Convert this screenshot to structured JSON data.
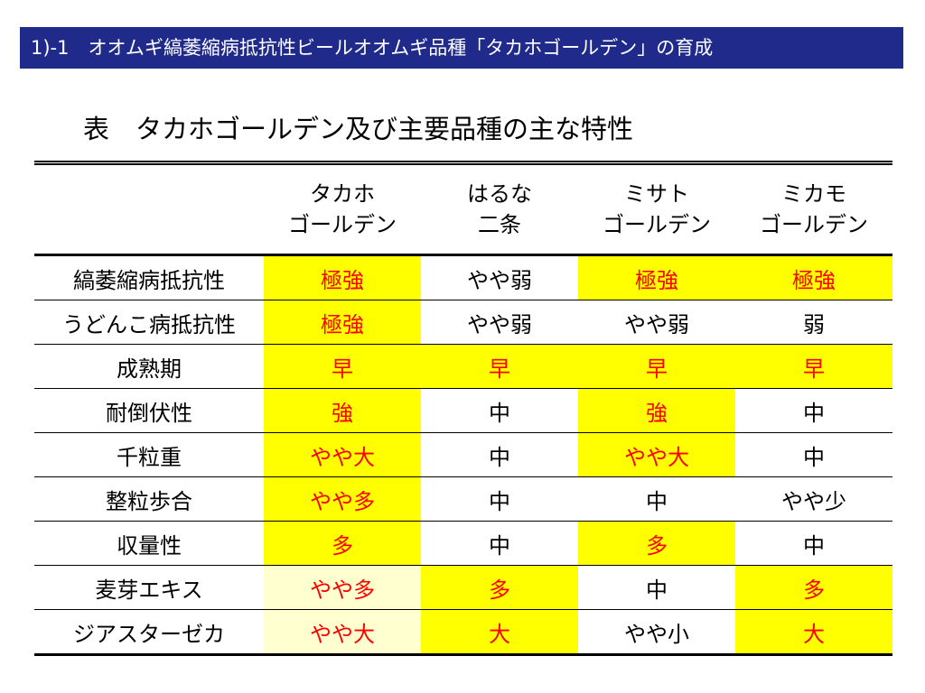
{
  "header": {
    "title": "1)-1　オオムギ縞萎縮病抵抗性ビールオオムギ品種「タカホゴールデン」の育成"
  },
  "caption": "表　タカホゴールデン及び主要品種の主な特性",
  "columns": [
    {
      "line1": "",
      "line2": ""
    },
    {
      "line1": "タカホ",
      "line2": "ゴールデン"
    },
    {
      "line1": "はるな",
      "line2": "二条"
    },
    {
      "line1": "ミサト",
      "line2": "ゴールデン"
    },
    {
      "line1": "ミカモ",
      "line2": "ゴールデン"
    }
  ],
  "colors": {
    "highlight": "#ffff00",
    "highlight_pale": "#ffffd0",
    "emphasis_text": "#ff0000",
    "header_bar": "#1f2a8a"
  },
  "rows": [
    {
      "label": "縞萎縮病抵抗性",
      "cells": [
        {
          "v": "極強",
          "hl": "yes",
          "red": "yes"
        },
        {
          "v": "やや弱",
          "hl": "no",
          "red": "no"
        },
        {
          "v": "極強",
          "hl": "yes",
          "red": "yes"
        },
        {
          "v": "極強",
          "hl": "yes",
          "red": "yes"
        }
      ]
    },
    {
      "label": "うどんこ病抵抗性",
      "cells": [
        {
          "v": "極強",
          "hl": "yes",
          "red": "yes"
        },
        {
          "v": "やや弱",
          "hl": "no",
          "red": "no"
        },
        {
          "v": "やや弱",
          "hl": "no",
          "red": "no"
        },
        {
          "v": "弱",
          "hl": "no",
          "red": "no"
        }
      ]
    },
    {
      "label": "成熟期",
      "cells": [
        {
          "v": "早",
          "hl": "yes",
          "red": "yes"
        },
        {
          "v": "早",
          "hl": "yes",
          "red": "yes"
        },
        {
          "v": "早",
          "hl": "yes",
          "red": "yes"
        },
        {
          "v": "早",
          "hl": "yes",
          "red": "yes"
        }
      ]
    },
    {
      "label": "耐倒伏性",
      "cells": [
        {
          "v": "強",
          "hl": "yes",
          "red": "yes"
        },
        {
          "v": "中",
          "hl": "no",
          "red": "no"
        },
        {
          "v": "強",
          "hl": "yes",
          "red": "yes"
        },
        {
          "v": "中",
          "hl": "no",
          "red": "no"
        }
      ]
    },
    {
      "label": "千粒重",
      "cells": [
        {
          "v": "やや大",
          "hl": "yes",
          "red": "yes"
        },
        {
          "v": "中",
          "hl": "no",
          "red": "no"
        },
        {
          "v": "やや大",
          "hl": "yes",
          "red": "yes"
        },
        {
          "v": "中",
          "hl": "no",
          "red": "no"
        }
      ]
    },
    {
      "label": "整粒歩合",
      "cells": [
        {
          "v": "やや多",
          "hl": "yes",
          "red": "yes"
        },
        {
          "v": "中",
          "hl": "no",
          "red": "no"
        },
        {
          "v": "中",
          "hl": "no",
          "red": "no"
        },
        {
          "v": "やや少",
          "hl": "no",
          "red": "no"
        }
      ]
    },
    {
      "label": "収量性",
      "cells": [
        {
          "v": "多",
          "hl": "yes",
          "red": "yes"
        },
        {
          "v": "中",
          "hl": "no",
          "red": "no"
        },
        {
          "v": "多",
          "hl": "yes",
          "red": "yes"
        },
        {
          "v": "中",
          "hl": "no",
          "red": "no"
        }
      ]
    },
    {
      "label": "麦芽エキス",
      "cells": [
        {
          "v": "やや多",
          "hl": "pale",
          "red": "yes"
        },
        {
          "v": "多",
          "hl": "yes",
          "red": "yes"
        },
        {
          "v": "中",
          "hl": "no",
          "red": "no"
        },
        {
          "v": "多",
          "hl": "yes",
          "red": "yes"
        }
      ]
    },
    {
      "label": "ジアスターゼカ",
      "cells": [
        {
          "v": "やや大",
          "hl": "pale",
          "red": "yes"
        },
        {
          "v": "大",
          "hl": "yes",
          "red": "yes"
        },
        {
          "v": "やや小",
          "hl": "no",
          "red": "no"
        },
        {
          "v": "大",
          "hl": "yes",
          "red": "yes"
        }
      ]
    }
  ]
}
